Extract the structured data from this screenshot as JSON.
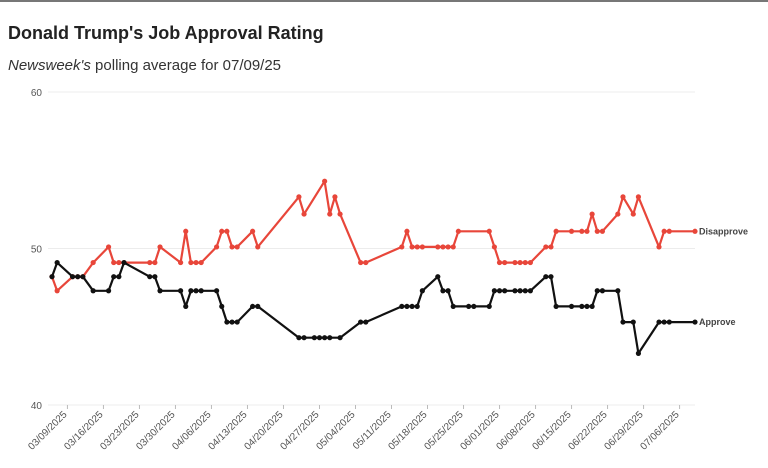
{
  "chart_data": {
    "type": "line",
    "title": "Donald Trump's Job Approval Rating",
    "subtitle": [
      "Newsweek's",
      " polling average for 07/09/25"
    ],
    "xlim": [
      "03/06/2025",
      "07/09/2025"
    ],
    "xticks": [
      "03/09/2025",
      "03/16/2025",
      "03/23/2025",
      "03/30/2025",
      "04/06/2025",
      "04/13/2025",
      "04/20/2025",
      "04/27/2025",
      "05/04/2025",
      "05/11/2025",
      "05/18/2025",
      "05/25/2025",
      "06/01/2025",
      "06/08/2025",
      "06/15/2025",
      "06/22/2025",
      "06/29/2025",
      "07/06/2025"
    ],
    "ylim": [
      40,
      60
    ],
    "yticks": [
      40,
      50,
      60
    ],
    "series": [
      {
        "name": "Disapprove",
        "color": "#e8463a",
        "x": [
          "03/06/2025",
          "03/07/2025",
          "03/10/2025",
          "03/11/2025",
          "03/12/2025",
          "03/14/2025",
          "03/17/2025",
          "03/18/2025",
          "03/19/2025",
          "03/20/2025",
          "03/25/2025",
          "03/26/2025",
          "03/27/2025",
          "03/31/2025",
          "04/01/2025",
          "04/02/2025",
          "04/03/2025",
          "04/04/2025",
          "04/07/2025",
          "04/08/2025",
          "04/09/2025",
          "04/10/2025",
          "04/11/2025",
          "04/14/2025",
          "04/15/2025",
          "04/23/2025",
          "04/24/2025",
          "04/28/2025",
          "04/29/2025",
          "04/30/2025",
          "05/01/2025",
          "05/05/2025",
          "05/06/2025",
          "05/13/2025",
          "05/14/2025",
          "05/15/2025",
          "05/16/2025",
          "05/17/2025",
          "05/20/2025",
          "05/21/2025",
          "05/22/2025",
          "05/23/2025",
          "05/24/2025",
          "05/30/2025",
          "05/31/2025",
          "06/01/2025",
          "06/02/2025",
          "06/04/2025",
          "06/05/2025",
          "06/06/2025",
          "06/07/2025",
          "06/10/2025",
          "06/11/2025",
          "06/12/2025",
          "06/15/2025",
          "06/17/2025",
          "06/18/2025",
          "06/19/2025",
          "06/20/2025",
          "06/21/2025",
          "06/24/2025",
          "06/25/2025",
          "06/27/2025",
          "06/28/2025",
          "07/02/2025",
          "07/03/2025",
          "07/04/2025",
          "07/09/2025"
        ],
        "values": [
          48.2,
          47.3,
          48.2,
          48.2,
          48.2,
          49.1,
          50.1,
          49.1,
          49.1,
          49.1,
          49.1,
          49.1,
          50.1,
          49.1,
          51.1,
          49.1,
          49.1,
          49.1,
          50.1,
          51.1,
          51.1,
          50.1,
          50.1,
          51.1,
          50.1,
          53.3,
          52.2,
          54.3,
          52.2,
          53.3,
          52.2,
          49.1,
          49.1,
          50.1,
          51.1,
          50.1,
          50.1,
          50.1,
          50.1,
          50.1,
          50.1,
          50.1,
          51.1,
          51.1,
          50.1,
          49.1,
          49.1,
          49.1,
          49.1,
          49.1,
          49.1,
          50.1,
          50.1,
          51.1,
          51.1,
          51.1,
          51.1,
          52.2,
          51.1,
          51.1,
          52.2,
          53.3,
          52.2,
          53.3,
          50.1,
          51.1,
          51.1,
          51.1
        ]
      },
      {
        "name": "Approve",
        "color": "#111111",
        "x": [
          "03/06/2025",
          "03/07/2025",
          "03/10/2025",
          "03/11/2025",
          "03/12/2025",
          "03/14/2025",
          "03/17/2025",
          "03/18/2025",
          "03/19/2025",
          "03/20/2025",
          "03/25/2025",
          "03/26/2025",
          "03/27/2025",
          "03/31/2025",
          "04/01/2025",
          "04/02/2025",
          "04/03/2025",
          "04/04/2025",
          "04/07/2025",
          "04/08/2025",
          "04/09/2025",
          "04/10/2025",
          "04/11/2025",
          "04/14/2025",
          "04/15/2025",
          "04/23/2025",
          "04/24/2025",
          "04/26/2025",
          "04/27/2025",
          "04/28/2025",
          "04/29/2025",
          "05/01/2025",
          "05/05/2025",
          "05/06/2025",
          "05/13/2025",
          "05/14/2025",
          "05/15/2025",
          "05/16/2025",
          "05/17/2025",
          "05/20/2025",
          "05/21/2025",
          "05/22/2025",
          "05/23/2025",
          "05/26/2025",
          "05/27/2025",
          "05/30/2025",
          "05/31/2025",
          "06/01/2025",
          "06/02/2025",
          "06/04/2025",
          "06/05/2025",
          "06/06/2025",
          "06/07/2025",
          "06/10/2025",
          "06/11/2025",
          "06/12/2025",
          "06/15/2025",
          "06/17/2025",
          "06/18/2025",
          "06/19/2025",
          "06/20/2025",
          "06/21/2025",
          "06/24/2025",
          "06/25/2025",
          "06/27/2025",
          "06/28/2025",
          "07/02/2025",
          "07/03/2025",
          "07/04/2025",
          "07/09/2025"
        ],
        "values": [
          48.2,
          49.1,
          48.2,
          48.2,
          48.2,
          47.3,
          47.3,
          48.2,
          48.2,
          49.1,
          48.2,
          48.2,
          47.3,
          47.3,
          46.3,
          47.3,
          47.3,
          47.3,
          47.3,
          46.3,
          45.3,
          45.3,
          45.3,
          46.3,
          46.3,
          44.3,
          44.3,
          44.3,
          44.3,
          44.3,
          44.3,
          44.3,
          45.3,
          45.3,
          46.3,
          46.3,
          46.3,
          46.3,
          47.3,
          48.2,
          47.3,
          47.3,
          46.3,
          46.3,
          46.3,
          46.3,
          47.3,
          47.3,
          47.3,
          47.3,
          47.3,
          47.3,
          47.3,
          48.2,
          48.2,
          46.3,
          46.3,
          46.3,
          46.3,
          46.3,
          47.3,
          47.3,
          47.3,
          45.3,
          45.3,
          43.3,
          45.3,
          45.3,
          45.3,
          45.3
        ]
      }
    ]
  }
}
